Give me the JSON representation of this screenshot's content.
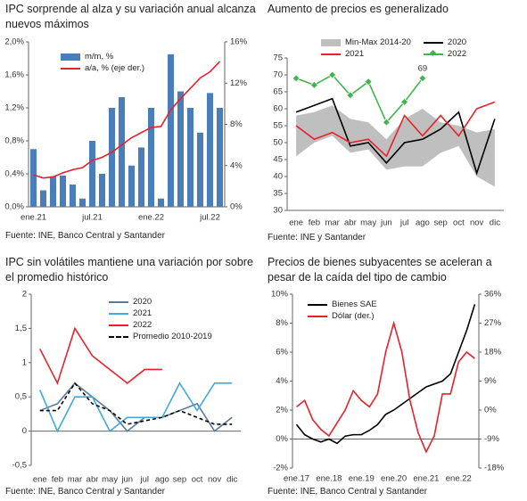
{
  "chart_data": [
    {
      "type": "bar_line",
      "title": "IPC sorprende al alza y su variación anual alcanza nuevos máximos",
      "source": "Fuente: INE, Banco Central y Santander",
      "categories": [
        "ene.21",
        null,
        null,
        null,
        null,
        null,
        "jul.21",
        null,
        null,
        null,
        null,
        null,
        "ene.22",
        null,
        null,
        null,
        null,
        null,
        "jul.22",
        null
      ],
      "series": [
        {
          "name": "m/m, %",
          "color": "#4a7ebb",
          "kind": "bar",
          "values": [
            0.7,
            0.2,
            0.37,
            0.38,
            0.27,
            0.1,
            0.8,
            0.4,
            1.2,
            1.33,
            0.5,
            0.72,
            1.2,
            0.1,
            1.85,
            1.4,
            1.2,
            0.9,
            1.38,
            1.2
          ]
        },
        {
          "name": "a/a, % (eje der.)",
          "color": "#e8202a",
          "axis": "y2",
          "values": [
            3.1,
            2.8,
            2.9,
            3.3,
            3.6,
            3.8,
            4.5,
            4.8,
            5.3,
            6.0,
            6.7,
            7.2,
            7.7,
            7.8,
            9.4,
            10.5,
            11.5,
            12.5,
            13.1,
            14.1
          ]
        }
      ],
      "ylim": [
        0,
        2
      ],
      "yticks": [
        {
          "value": 0,
          "label": "0,0%"
        },
        {
          "value": 0.4,
          "label": "0,4%"
        },
        {
          "value": 0.8,
          "label": "0,8%"
        },
        {
          "value": 1.2,
          "label": "1,2%"
        },
        {
          "value": 1.6,
          "label": "1,6%"
        },
        {
          "value": 2,
          "label": "2,0%"
        }
      ],
      "y2lim": [
        0,
        16
      ],
      "y2ticks": [
        {
          "value": 0,
          "label": "0%"
        },
        {
          "value": 4,
          "label": "4%"
        },
        {
          "value": 8,
          "label": "8%"
        },
        {
          "value": 12,
          "label": "12%"
        },
        {
          "value": 16,
          "label": "16%"
        }
      ],
      "legend": "upper left"
    },
    {
      "type": "line",
      "title": "Aumento de precios es generalizado",
      "source": "Fuente: INE y Santander",
      "categories": [
        "ene",
        "feb",
        "mar",
        "abr",
        "may",
        "jun",
        "jul",
        "ago",
        "sep",
        "oct",
        "nov",
        "dic"
      ],
      "series": [
        {
          "name": "Min-Max 2014-20",
          "color": "#bfbfbf",
          "kind": "band",
          "low": [
            46,
            50,
            52,
            47,
            48,
            42,
            43,
            43,
            47,
            49,
            40,
            37
          ],
          "high": [
            58,
            59,
            61,
            57,
            56,
            51,
            57,
            60,
            56,
            55,
            53,
            54
          ]
        },
        {
          "name": "2020",
          "color": "#000000",
          "values": [
            59,
            61,
            63,
            49,
            50,
            44,
            50,
            51,
            54,
            59,
            41,
            57
          ]
        },
        {
          "name": "2021",
          "color": "#e8202a",
          "values": [
            55,
            51,
            53,
            50,
            51,
            46,
            58,
            52,
            58,
            52,
            60,
            62
          ]
        },
        {
          "name": "2022",
          "color": "#3cb64a",
          "marker": true,
          "values": [
            69,
            67,
            70,
            64,
            68,
            56,
            62,
            69,
            null,
            null,
            null,
            null
          ],
          "value_labels": [
            null,
            null,
            null,
            null,
            null,
            null,
            null,
            "69",
            null,
            null,
            null,
            null
          ]
        }
      ],
      "ylim": [
        30,
        75
      ],
      "yticks": [
        30,
        35,
        40,
        45,
        50,
        55,
        60,
        65,
        70,
        75
      ],
      "legend": "upper center"
    },
    {
      "type": "line",
      "title": "IPC sin volátiles mantiene una variación por sobre el promedio histórico",
      "source": "Fuente: INE, Banco Central y Santander",
      "categories": [
        "ene",
        "feb",
        "mar",
        "abr",
        "may",
        "jun",
        "jul",
        "ago",
        "sep",
        "oct",
        "nov",
        "dic"
      ],
      "series": [
        {
          "name": "2020",
          "color": "#5a7a9c",
          "values": [
            0.3,
            0.4,
            0.7,
            0.5,
            0.3,
            0.0,
            0.2,
            0.2,
            0.3,
            0.4,
            0.0,
            0.2
          ]
        },
        {
          "name": "2021",
          "color": "#3fa9e0",
          "values": [
            0.6,
            0.0,
            0.5,
            0.5,
            0.0,
            0.2,
            0.2,
            0.2,
            0.7,
            0.3,
            0.7,
            0.7
          ]
        },
        {
          "name": "2022",
          "color": "#e8202a",
          "values": [
            1.2,
            0.7,
            1.5,
            1.1,
            0.9,
            0.7,
            0.9,
            0.9,
            null,
            null,
            null,
            null
          ]
        },
        {
          "name": "Promedio 2010-2019",
          "color": "#000000",
          "dash": true,
          "values": [
            0.3,
            0.3,
            0.7,
            0.4,
            0.3,
            0.1,
            0.15,
            0.2,
            0.3,
            0.2,
            0.1,
            0.1
          ]
        }
      ],
      "ylim": [
        -0.5,
        2
      ],
      "yticks": [
        {
          "value": -0.5,
          "label": "-0,5"
        },
        0,
        {
          "value": 0.5,
          "label": "0,5"
        },
        1,
        {
          "value": 1.5,
          "label": "1,5"
        },
        2
      ],
      "legend": "upper right"
    },
    {
      "type": "line",
      "title": "Precios de bienes subyacentes se aceleran a pesar de la caída del tipo de cambio",
      "source": "Fuente: INE, Banco Central y Santander",
      "categories": [
        "ene.17",
        null,
        null,
        null,
        "ene.18",
        null,
        null,
        null,
        "ene.19",
        null,
        null,
        null,
        "ene.20",
        null,
        null,
        null,
        "ene.21",
        null,
        null,
        null,
        "ene.22",
        null,
        null
      ],
      "series": [
        {
          "name": "Bienes SAE",
          "color": "#000000",
          "values": [
            1.0,
            0.3,
            0.0,
            -0.2,
            0.0,
            -0.3,
            0.2,
            0.3,
            0.3,
            0.6,
            1.0,
            1.7,
            2.0,
            2.4,
            2.8,
            3.2,
            3.6,
            3.8,
            4.0,
            4.5,
            6.0,
            7.5,
            9.3
          ]
        },
        {
          "name": "Dólar (der.)",
          "color": "#e8202a",
          "axis": "y2",
          "values": [
            1,
            3,
            -3,
            -6,
            -8,
            -4,
            0,
            6,
            3,
            1,
            5,
            18,
            27,
            18,
            3,
            -7,
            -13,
            -8,
            5,
            5,
            15,
            18,
            16
          ]
        }
      ],
      "ylim": [
        -2,
        10
      ],
      "yticks": [
        {
          "value": -2,
          "label": "-2%"
        },
        {
          "value": 0,
          "label": "0%"
        },
        {
          "value": 2,
          "label": "2%"
        },
        {
          "value": 4,
          "label": "4%"
        },
        {
          "value": 6,
          "label": "6%"
        },
        {
          "value": 8,
          "label": "8%"
        },
        {
          "value": 10,
          "label": "10%"
        }
      ],
      "y2lim": [
        -18,
        36
      ],
      "y2ticks": [
        {
          "value": -18,
          "label": "-18%"
        },
        {
          "value": -9,
          "label": "-9%"
        },
        {
          "value": 0,
          "label": "0%"
        },
        {
          "value": 9,
          "label": "9%"
        },
        {
          "value": 18,
          "label": "18%"
        },
        {
          "value": 27,
          "label": "27%"
        },
        {
          "value": 36,
          "label": "36%"
        }
      ],
      "legend": "upper left"
    }
  ]
}
